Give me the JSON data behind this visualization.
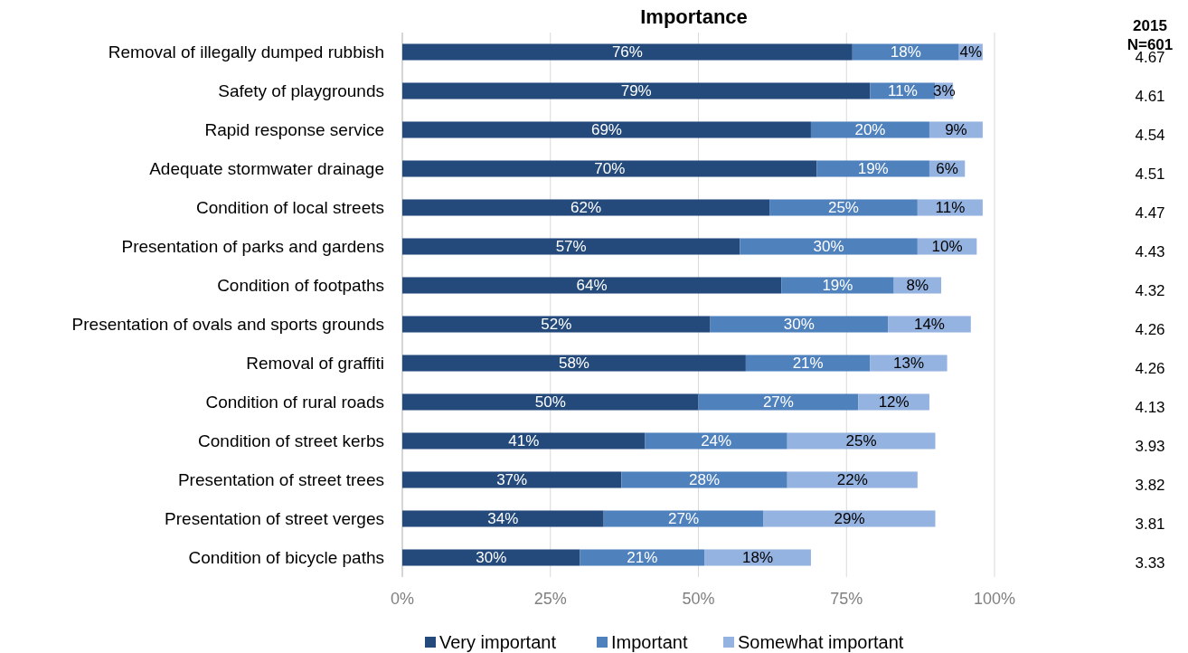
{
  "chart_data": {
    "type": "bar",
    "orientation": "horizontal",
    "stacked": true,
    "title": "Importance",
    "categories": [
      "Removal of illegally dumped rubbish",
      "Safety of playgrounds",
      "Rapid response service",
      "Adequate stormwater drainage",
      "Condition of local streets",
      "Presentation of parks and gardens",
      "Condition of footpaths",
      "Presentation of ovals and sports grounds",
      "Removal of graffiti",
      "Condition of rural roads",
      "Condition of street kerbs",
      "Presentation of street trees",
      "Presentation of street verges",
      "Condition of bicycle paths"
    ],
    "series": [
      {
        "name": "Very important",
        "color": "#244a7c",
        "values": [
          76,
          79,
          69,
          70,
          62,
          57,
          64,
          52,
          58,
          50,
          41,
          37,
          34,
          30
        ],
        "value_labels": [
          "76%",
          "79%",
          "69%",
          "70%",
          "62%",
          "57%",
          "64%",
          "52%",
          "58%",
          "50%",
          "41%",
          "37%",
          "34%",
          "30%"
        ]
      },
      {
        "name": "Important",
        "color": "#4f81bd",
        "values": [
          18,
          11,
          20,
          19,
          25,
          30,
          19,
          30,
          21,
          27,
          24,
          28,
          27,
          21
        ],
        "value_labels": [
          "18%",
          "11%",
          "20%",
          "19%",
          "25%",
          "30%",
          "19%",
          "30%",
          "21%",
          "27%",
          "24%",
          "28%",
          "27%",
          "21%"
        ]
      },
      {
        "name": "Somewhat important",
        "color": "#95b3e0",
        "values": [
          4,
          3,
          9,
          6,
          11,
          10,
          8,
          14,
          13,
          12,
          25,
          22,
          29,
          18
        ],
        "value_labels": [
          "4%",
          "3%",
          "9%",
          "6%",
          "11%",
          "10%",
          "8%",
          "14%",
          "13%",
          "12%",
          "25%",
          "22%",
          "29%",
          "18%"
        ]
      }
    ],
    "xlim": [
      0,
      100
    ],
    "xticks": [
      {
        "value": 0,
        "label": "0%"
      },
      {
        "value": 25,
        "label": "25%"
      },
      {
        "value": 50,
        "label": "50%"
      },
      {
        "value": 75,
        "label": "75%"
      },
      {
        "value": 100,
        "label": "100%"
      }
    ],
    "grid": "x",
    "legend": "bottom",
    "annotations": [
      "2015",
      "N=601",
      "4.67",
      "4.61",
      "4.54",
      "4.51",
      "4.47",
      "4.43",
      "4.32",
      "4.26",
      "4.26",
      "4.13",
      "3.93",
      "3.82",
      "3.81",
      "3.33"
    ]
  }
}
